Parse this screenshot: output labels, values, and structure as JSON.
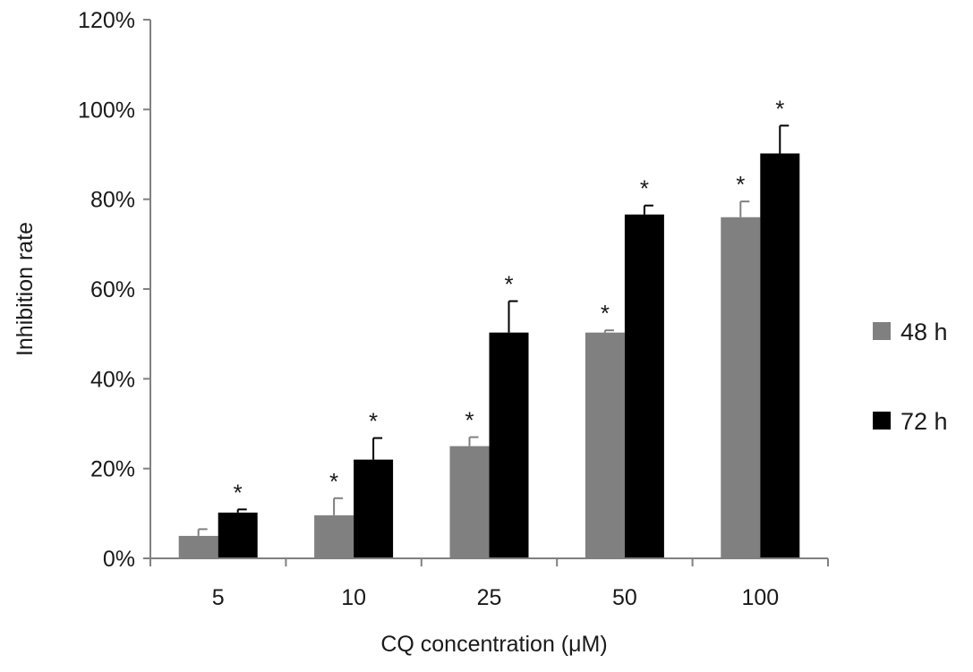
{
  "chart_data": {
    "type": "bar",
    "title": "",
    "xlabel": "CQ concentration (μM)",
    "ylabel": "Inhibition rate",
    "categories": [
      "5",
      "10",
      "25",
      "50",
      "100"
    ],
    "ylim": [
      0,
      120
    ],
    "yticks": [
      0,
      20,
      40,
      60,
      80,
      100,
      120
    ],
    "ytick_labels": [
      "0%",
      "20%",
      "40%",
      "60%",
      "80%",
      "100%",
      "120%"
    ],
    "grid": false,
    "legend_position": "right",
    "series": [
      {
        "name": "48 h",
        "color": "#808080",
        "values": [
          5,
          9.6,
          25,
          50.3,
          76
        ],
        "errors": [
          1.5,
          3.8,
          2,
          0.5,
          3.5
        ],
        "significance": [
          "",
          "*",
          "*",
          "*",
          "*"
        ]
      },
      {
        "name": "72 h",
        "color": "#000000",
        "values": [
          10.2,
          22,
          50.3,
          76.6,
          90.2
        ],
        "errors": [
          0.7,
          4.8,
          7,
          2,
          6.2
        ],
        "significance": [
          "*",
          "*",
          "*",
          "*",
          "*"
        ]
      }
    ]
  }
}
